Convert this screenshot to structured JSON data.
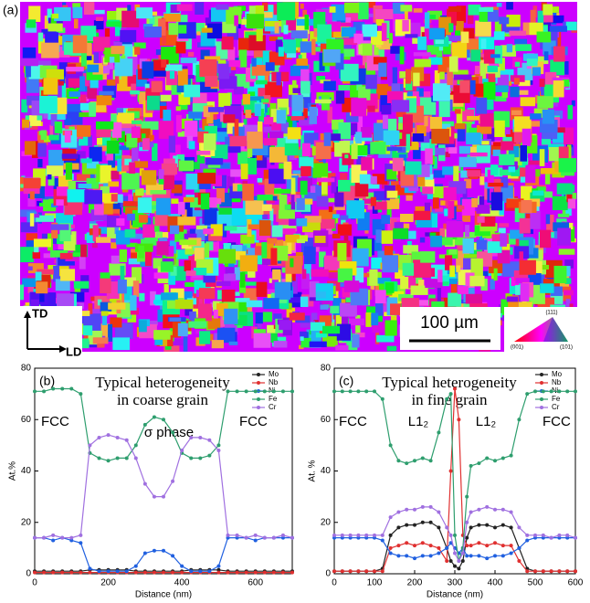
{
  "figure_a": {
    "label": "(a)",
    "axes": [
      "TD",
      "LD"
    ],
    "scale_bar": "100 µm",
    "ipf_key": [
      "(111)",
      "(001)",
      "(101)"
    ]
  },
  "chart_data": [
    {
      "type": "line",
      "panel": "(b)",
      "title": [
        "Typical heterogeneity",
        "in coarse grain"
      ],
      "annotations": [
        "FCC",
        "σ phase",
        "FCC"
      ],
      "xlabel": "Distance (nm)",
      "ylabel": "At.%",
      "x": [
        0,
        25,
        50,
        75,
        100,
        125,
        150,
        175,
        200,
        225,
        250,
        275,
        300,
        325,
        350,
        375,
        400,
        425,
        450,
        475,
        500,
        525,
        550,
        575,
        600,
        625,
        650,
        675,
        700
      ],
      "xlim": [
        0,
        700
      ],
      "xticks": [
        0,
        200,
        400,
        600
      ],
      "ylim": [
        0,
        80
      ],
      "yticks": [
        0,
        20,
        40,
        60,
        80
      ],
      "series": [
        {
          "name": "Mo",
          "color": "#222222",
          "values": [
            1,
            1,
            1,
            1,
            1,
            1,
            1.5,
            1.5,
            1.5,
            1.5,
            1.5,
            1,
            1,
            1,
            1,
            1,
            1,
            1.5,
            1.5,
            1.5,
            1.5,
            1,
            1,
            1,
            1,
            1,
            1,
            1,
            1
          ]
        },
        {
          "name": "Nb",
          "color": "#e03030",
          "values": [
            0.5,
            0.5,
            0.5,
            0.5,
            0.5,
            0.5,
            0.5,
            0.5,
            0.5,
            0.5,
            0.5,
            0.5,
            0.5,
            0.5,
            0.5,
            0.5,
            0.5,
            0.5,
            0.5,
            0.5,
            0.5,
            0.5,
            0.5,
            0.5,
            0.5,
            0.5,
            0.5,
            0.5,
            0.5
          ]
        },
        {
          "name": "Ni",
          "color": "#2060e0",
          "values": [
            14,
            14,
            13,
            14,
            13,
            12,
            2,
            1,
            1,
            1,
            1,
            3,
            8,
            9,
            9,
            7,
            3,
            1,
            1,
            1,
            3,
            14,
            14,
            14,
            13,
            14,
            14,
            14,
            14
          ]
        },
        {
          "name": "Fe",
          "color": "#2e9e6e",
          "values": [
            71,
            71,
            72,
            72,
            72,
            70,
            47,
            45,
            44,
            45,
            45,
            50,
            58,
            61,
            60,
            55,
            47,
            45,
            45,
            46,
            50,
            71,
            71,
            71,
            71,
            71,
            71,
            71,
            71
          ]
        },
        {
          "name": "Cr",
          "color": "#a070e0",
          "values": [
            14,
            14,
            15,
            14,
            14,
            15,
            50,
            53,
            54,
            53,
            52,
            45,
            35,
            30,
            30,
            36,
            48,
            53,
            53,
            52,
            48,
            15,
            15,
            14,
            15,
            14,
            14,
            15,
            14
          ]
        }
      ]
    },
    {
      "type": "line",
      "panel": "(c)",
      "title": [
        "Typical heterogeneity",
        "in fine grain"
      ],
      "annotations": [
        "FCC",
        "L1₂",
        "L1₂",
        "FCC"
      ],
      "xlabel": "Distance (nm)",
      "ylabel": "At. %",
      "x": [
        0,
        20,
        40,
        60,
        80,
        100,
        120,
        140,
        160,
        180,
        200,
        220,
        240,
        260,
        280,
        290,
        300,
        310,
        320,
        330,
        340,
        360,
        380,
        400,
        420,
        440,
        460,
        480,
        500,
        520,
        540,
        560,
        580,
        600
      ],
      "xlim": [
        0,
        600
      ],
      "xticks": [
        0,
        100,
        200,
        300,
        400,
        500,
        600
      ],
      "ylim": [
        0,
        80
      ],
      "yticks": [
        0,
        20,
        40,
        60,
        80
      ],
      "series": [
        {
          "name": "Mo",
          "color": "#222222",
          "values": [
            1,
            1,
            1,
            1,
            1,
            1,
            2,
            15,
            18,
            19,
            19,
            20,
            20,
            18,
            10,
            5,
            3,
            2,
            5,
            14,
            18,
            19,
            19,
            18,
            19,
            18,
            10,
            2,
            1,
            1,
            1,
            1,
            1,
            1
          ]
        },
        {
          "name": "Nb",
          "color": "#e03030",
          "values": [
            1,
            1,
            1,
            1,
            1,
            1,
            1,
            10,
            11,
            12,
            11,
            12,
            11,
            10,
            5,
            40,
            72,
            60,
            15,
            11,
            11,
            12,
            11,
            12,
            11,
            11,
            5,
            1,
            1,
            1,
            1,
            1,
            1,
            1
          ]
        },
        {
          "name": "Ni",
          "color": "#2060e0",
          "values": [
            14,
            14,
            14,
            14,
            14,
            14,
            13,
            8,
            7,
            7,
            6,
            7,
            7,
            8,
            10,
            12,
            10,
            8,
            10,
            7,
            7,
            7,
            6,
            7,
            7,
            8,
            10,
            13,
            14,
            14,
            14,
            14,
            14,
            14
          ]
        },
        {
          "name": "Fe",
          "color": "#2e9e6e",
          "values": [
            71,
            71,
            71,
            71,
            71,
            71,
            68,
            50,
            44,
            43,
            44,
            45,
            44,
            55,
            68,
            70,
            15,
            5,
            10,
            30,
            42,
            43,
            45,
            44,
            45,
            46,
            60,
            70,
            71,
            71,
            71,
            71,
            71,
            71
          ]
        },
        {
          "name": "Cr",
          "color": "#a070e0",
          "values": [
            15,
            15,
            15,
            15,
            15,
            15,
            15,
            22,
            24,
            25,
            25,
            26,
            26,
            24,
            18,
            15,
            8,
            5,
            8,
            20,
            24,
            25,
            26,
            25,
            25,
            24,
            18,
            15,
            15,
            15,
            14,
            15,
            15,
            14
          ]
        }
      ]
    }
  ]
}
